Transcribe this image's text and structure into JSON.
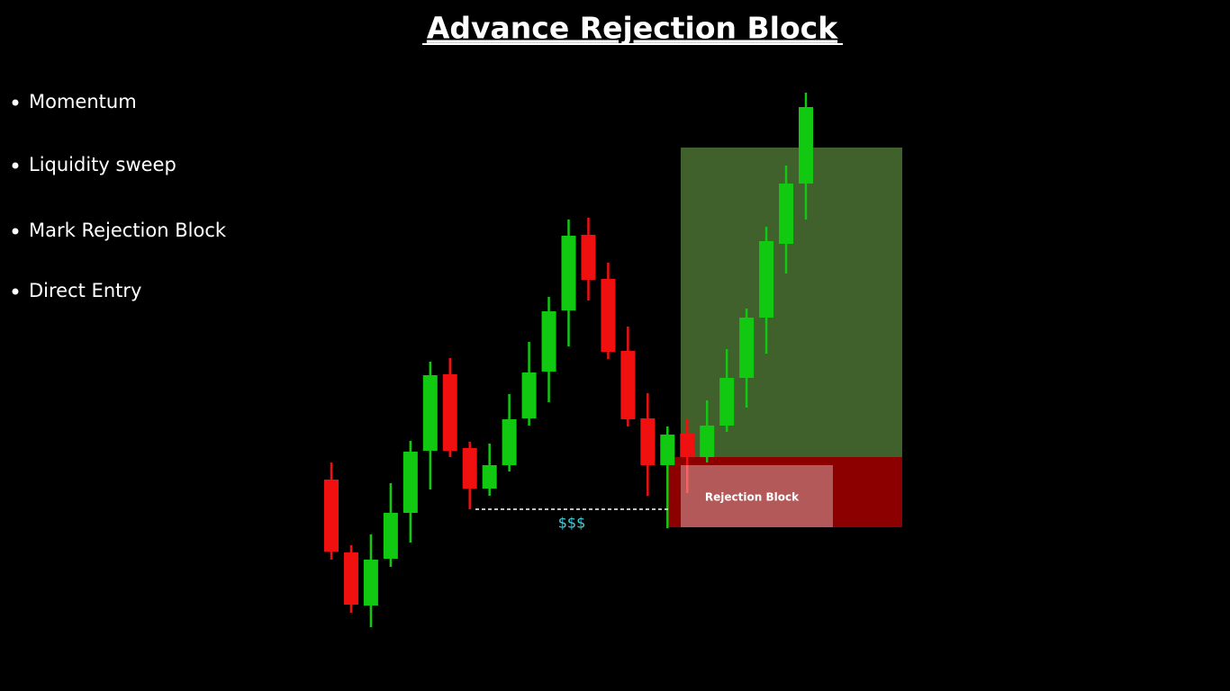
{
  "chart_data": {
    "type": "candlestick",
    "title": "Advance Rejection Block",
    "bullets": [
      "Momentum",
      "Liquidity sweep",
      "Mark Rejection Block",
      "Direct Entry"
    ],
    "annotations": [
      "Rejection Block",
      "$$$"
    ],
    "up_color": "#12c912",
    "down_color": "#f01010",
    "ylim": [
      0,
      620
    ],
    "open": [
      167,
      86,
      27,
      79,
      130,
      199,
      284,
      202,
      157,
      183,
      235,
      287,
      355,
      439,
      390,
      310,
      235,
      183,
      218,
      192,
      227,
      280,
      347,
      429,
      496
    ],
    "high": [
      186,
      94,
      106,
      163,
      210,
      298,
      302,
      209,
      207,
      262,
      320,
      370,
      456,
      458,
      408,
      337,
      263,
      226,
      235,
      255,
      312,
      357,
      448,
      516,
      597
    ],
    "low": [
      78,
      19,
      3,
      70,
      97,
      156,
      192,
      134,
      149,
      176,
      227,
      253,
      315,
      366,
      301,
      226,
      149,
      113,
      152,
      186,
      220,
      247,
      307,
      396,
      456
    ],
    "close": [
      87,
      28,
      78,
      130,
      198,
      283,
      199,
      157,
      183,
      234,
      286,
      354,
      438,
      389,
      309,
      234,
      183,
      217,
      192,
      227,
      280,
      347,
      432,
      496,
      581
    ]
  }
}
